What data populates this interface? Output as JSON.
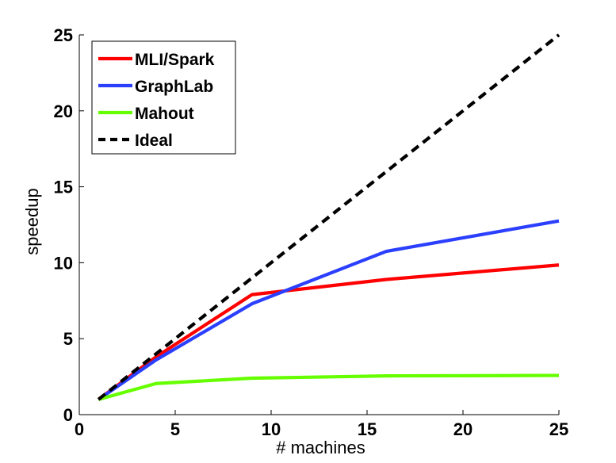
{
  "chart_data": {
    "type": "line",
    "title": "",
    "xlabel": "# machines",
    "ylabel": "speedup",
    "xlim": [
      0,
      25
    ],
    "ylim": [
      0,
      25
    ],
    "xticks": [
      0,
      5,
      10,
      15,
      20,
      25
    ],
    "yticks": [
      0,
      5,
      10,
      15,
      20,
      25
    ],
    "xtick_labels": [
      "0",
      "5",
      "10",
      "15",
      "20",
      "25"
    ],
    "ytick_labels": [
      "0",
      "5",
      "10",
      "15",
      "20",
      "25"
    ],
    "grid": false,
    "legend_position": "top-left",
    "series": [
      {
        "name": "MLI/Spark",
        "color": "#ff0000",
        "style": "solid",
        "x": [
          1,
          4,
          9,
          16,
          25
        ],
        "y": [
          1,
          3.8,
          7.9,
          8.9,
          9.85
        ]
      },
      {
        "name": "GraphLab",
        "color": "#2b3fff",
        "style": "solid",
        "x": [
          1,
          4,
          9,
          16,
          25
        ],
        "y": [
          1,
          3.6,
          7.3,
          10.75,
          12.75
        ]
      },
      {
        "name": "Mahout",
        "color": "#66ff00",
        "style": "solid",
        "x": [
          1,
          4,
          9,
          16,
          25
        ],
        "y": [
          1,
          2.05,
          2.4,
          2.55,
          2.58
        ]
      },
      {
        "name": "Ideal",
        "color": "#000000",
        "style": "dashed",
        "x": [
          1,
          25
        ],
        "y": [
          1,
          25
        ]
      }
    ]
  }
}
